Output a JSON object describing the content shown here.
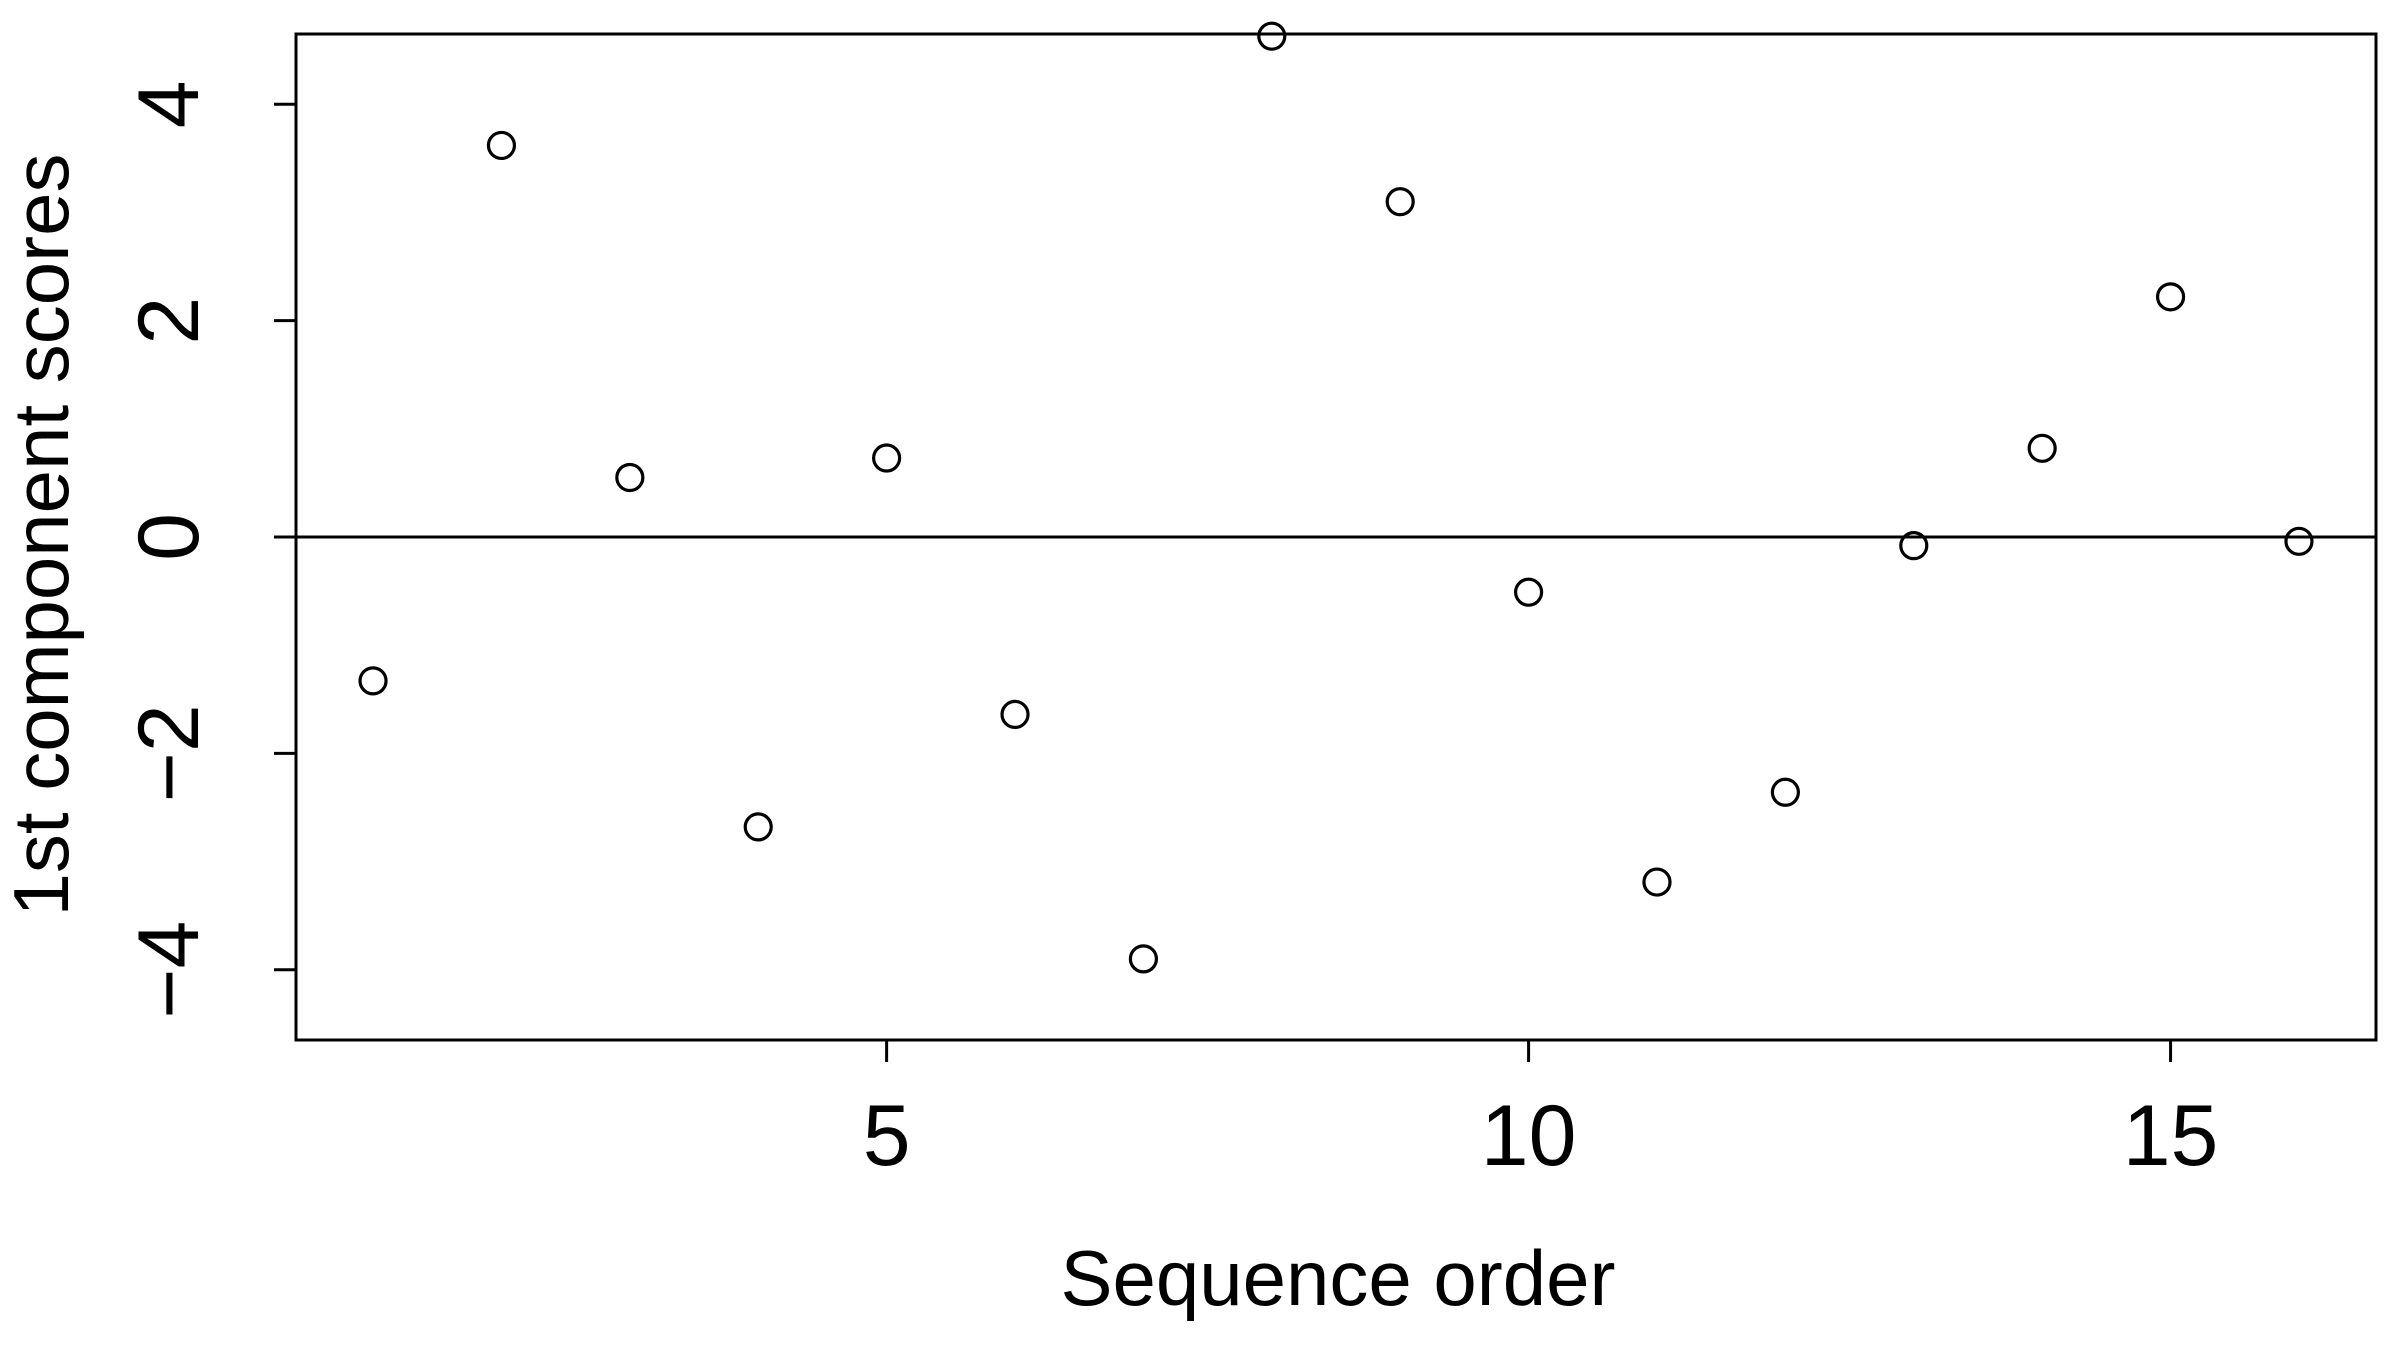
{
  "chart_data": {
    "type": "scatter",
    "title": "",
    "xlabel": "Sequence order",
    "ylabel": "1st component scores",
    "xlim": [
      0.4,
      16.6
    ],
    "ylim": [
      -4.65,
      4.65
    ],
    "x_ticks": [
      5,
      10,
      15
    ],
    "y_ticks": [
      -4,
      -2,
      0,
      2,
      4
    ],
    "x_tick_labels": [
      "5",
      "10",
      "15"
    ],
    "y_tick_labels": [
      "−4",
      "−2",
      "0",
      "2",
      "4"
    ],
    "reference_line_y": 0,
    "grid": false,
    "marker": "open-circle",
    "colors": {
      "points": "#000000",
      "axes": "#000000",
      "background": "#ffffff"
    },
    "x": [
      1,
      2,
      3,
      4,
      5,
      6,
      7,
      8,
      9,
      10,
      11,
      12,
      13,
      14,
      15,
      16
    ],
    "y": [
      -1.33,
      3.62,
      0.55,
      -2.68,
      0.73,
      -1.64,
      -3.9,
      4.63,
      3.1,
      -0.51,
      -3.19,
      -2.36,
      -0.08,
      0.82,
      2.22,
      -0.04
    ]
  }
}
